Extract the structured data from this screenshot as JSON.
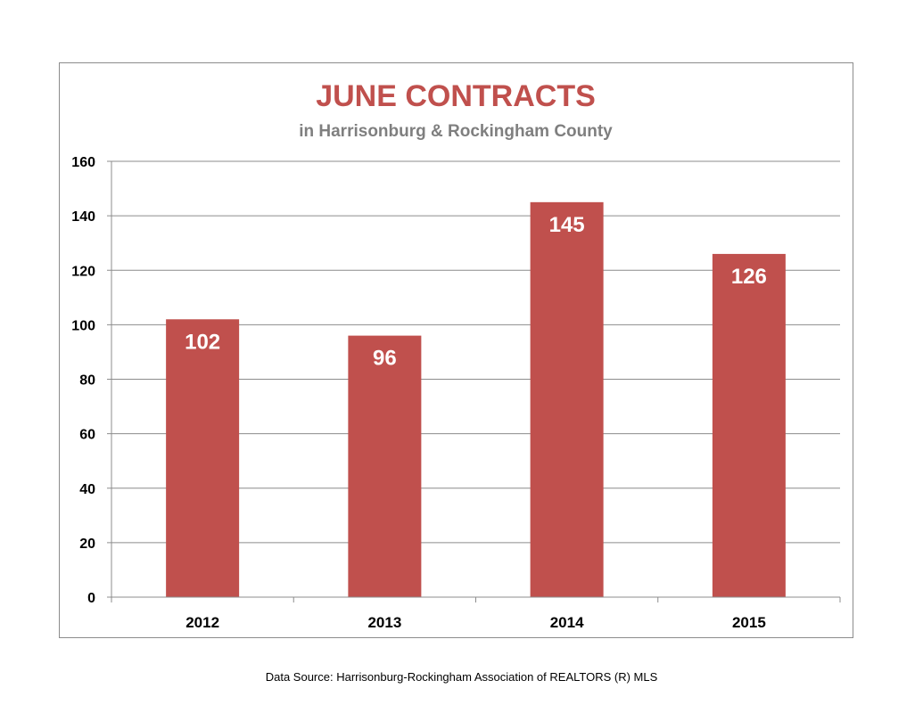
{
  "chart_data": {
    "type": "bar",
    "title": "JUNE CONTRACTS",
    "subtitle": "in Harrisonburg & Rockingham County",
    "categories": [
      "2012",
      "2013",
      "2014",
      "2015"
    ],
    "values": [
      102,
      96,
      145,
      126
    ],
    "data_labels": [
      "102",
      "96",
      "145",
      "126"
    ],
    "yticks": [
      "0",
      "20",
      "40",
      "60",
      "80",
      "100",
      "120",
      "140",
      "160"
    ],
    "ylim": [
      0,
      160
    ],
    "xlabel": "",
    "ylabel": "",
    "grid": true,
    "legend": "none",
    "bar_color": "#c0504d",
    "title_color": "#c0504d",
    "subtitle_color": "#7f7f7f"
  },
  "footer": {
    "source": "Data Source: Harrisonburg-Rockingham Association of REALTORS (R) MLS"
  }
}
